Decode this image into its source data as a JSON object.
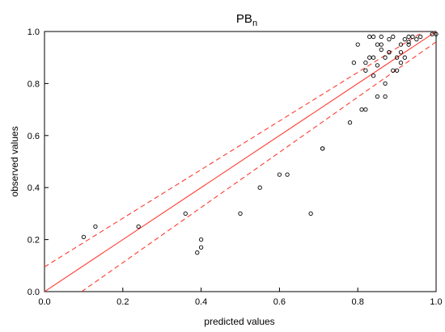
{
  "chart_data": {
    "type": "scatter",
    "title": "PB",
    "title_subscript": "n",
    "xlabel": "predicted values",
    "ylabel": "observed values",
    "xlim": [
      0.0,
      1.0
    ],
    "ylim": [
      0.0,
      1.0
    ],
    "xticks": [
      "0.0",
      "0.2",
      "0.4",
      "0.6",
      "0.8",
      "1.0"
    ],
    "yticks": [
      "0.0",
      "0.2",
      "0.4",
      "0.6",
      "0.8",
      "1.0"
    ],
    "grid": false,
    "marker": "open-circle",
    "marker_color": "#000000",
    "line_color": "#ff3b30",
    "fit_line": {
      "from": [
        0.0,
        0.0
      ],
      "to": [
        1.0,
        1.0
      ]
    },
    "confidence_upper": {
      "from": [
        0.0,
        0.095
      ],
      "to": [
        1.0,
        1.03
      ]
    },
    "confidence_lower": {
      "from": [
        0.095,
        0.0
      ],
      "to": [
        1.0,
        0.96
      ]
    },
    "points": [
      {
        "x": 0.1,
        "y": 0.21
      },
      {
        "x": 0.13,
        "y": 0.25
      },
      {
        "x": 0.24,
        "y": 0.25
      },
      {
        "x": 0.36,
        "y": 0.3
      },
      {
        "x": 0.39,
        "y": 0.15
      },
      {
        "x": 0.4,
        "y": 0.17
      },
      {
        "x": 0.4,
        "y": 0.2
      },
      {
        "x": 0.5,
        "y": 0.3
      },
      {
        "x": 0.55,
        "y": 0.4
      },
      {
        "x": 0.6,
        "y": 0.45
      },
      {
        "x": 0.62,
        "y": 0.45
      },
      {
        "x": 0.68,
        "y": 0.3
      },
      {
        "x": 0.71,
        "y": 0.55
      },
      {
        "x": 0.71,
        "y": 0.55
      },
      {
        "x": 0.78,
        "y": 0.65
      },
      {
        "x": 0.79,
        "y": 0.88
      },
      {
        "x": 0.8,
        "y": 0.95
      },
      {
        "x": 0.81,
        "y": 0.7
      },
      {
        "x": 0.82,
        "y": 0.7
      },
      {
        "x": 0.82,
        "y": 0.85
      },
      {
        "x": 0.82,
        "y": 0.88
      },
      {
        "x": 0.83,
        "y": 0.9
      },
      {
        "x": 0.83,
        "y": 0.98
      },
      {
        "x": 0.84,
        "y": 0.9
      },
      {
        "x": 0.84,
        "y": 0.98
      },
      {
        "x": 0.84,
        "y": 0.83
      },
      {
        "x": 0.85,
        "y": 0.75
      },
      {
        "x": 0.85,
        "y": 0.95
      },
      {
        "x": 0.85,
        "y": 0.87
      },
      {
        "x": 0.86,
        "y": 0.98
      },
      {
        "x": 0.86,
        "y": 0.93
      },
      {
        "x": 0.86,
        "y": 0.95
      },
      {
        "x": 0.87,
        "y": 0.75
      },
      {
        "x": 0.87,
        "y": 0.9
      },
      {
        "x": 0.87,
        "y": 0.8
      },
      {
        "x": 0.88,
        "y": 0.92
      },
      {
        "x": 0.88,
        "y": 0.97
      },
      {
        "x": 0.88,
        "y": 0.92
      },
      {
        "x": 0.89,
        "y": 0.98
      },
      {
        "x": 0.89,
        "y": 0.85
      },
      {
        "x": 0.9,
        "y": 0.9
      },
      {
        "x": 0.9,
        "y": 0.85
      },
      {
        "x": 0.91,
        "y": 0.88
      },
      {
        "x": 0.91,
        "y": 0.95
      },
      {
        "x": 0.91,
        "y": 0.92
      },
      {
        "x": 0.92,
        "y": 0.97
      },
      {
        "x": 0.92,
        "y": 0.9
      },
      {
        "x": 0.93,
        "y": 0.95
      },
      {
        "x": 0.93,
        "y": 0.96
      },
      {
        "x": 0.93,
        "y": 0.98
      },
      {
        "x": 0.94,
        "y": 0.98
      },
      {
        "x": 0.95,
        "y": 0.97
      },
      {
        "x": 0.96,
        "y": 0.98
      },
      {
        "x": 0.99,
        "y": 0.99
      },
      {
        "x": 1.0,
        "y": 0.99
      }
    ]
  }
}
